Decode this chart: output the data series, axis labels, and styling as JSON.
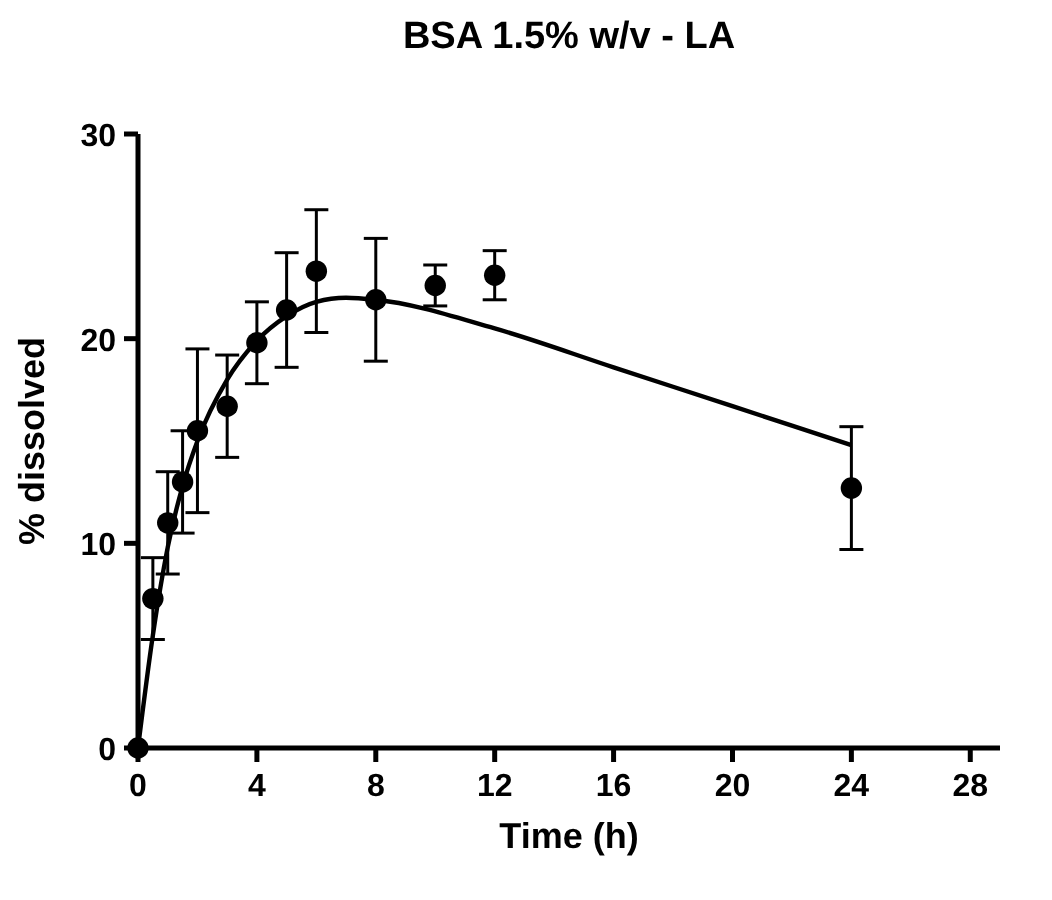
{
  "chart_data": {
    "type": "scatter",
    "title": "BSA 1.5% w/v - LA",
    "xlabel": "Time (h)",
    "ylabel": "% dissolved",
    "xlim": [
      0,
      29
    ],
    "xticks": [
      0,
      4,
      8,
      12,
      16,
      20,
      24,
      28
    ],
    "ylim": [
      0,
      30
    ],
    "yticks": [
      0,
      10,
      20,
      30
    ],
    "grid": false,
    "series": [
      {
        "color": "#000000",
        "marker": "circle",
        "x": [
          0,
          0.5,
          1,
          1.5,
          2,
          3,
          4,
          5,
          6,
          8,
          10,
          12,
          24
        ],
        "values": [
          0,
          7.3,
          11,
          13,
          15.5,
          16.7,
          19.8,
          21.4,
          23.3,
          21.9,
          22.6,
          23.1,
          12.7
        ],
        "errors": [
          null,
          2,
          2.5,
          2.5,
          4,
          2.5,
          2,
          2.8,
          3,
          3,
          1,
          1.2,
          3
        ]
      },
      {
        "type": "line",
        "color": "#000000",
        "line_style": "solid",
        "x": [
          0,
          0.5,
          1,
          1.5,
          2,
          3,
          4,
          5,
          6,
          7,
          8,
          12,
          16,
          20,
          24
        ],
        "values": [
          0,
          5.5,
          9.8,
          12.8,
          15,
          18,
          19.9,
          21.1,
          21.8,
          22,
          21.9,
          20.5,
          18.6,
          16.7,
          14.8
        ]
      }
    ]
  }
}
